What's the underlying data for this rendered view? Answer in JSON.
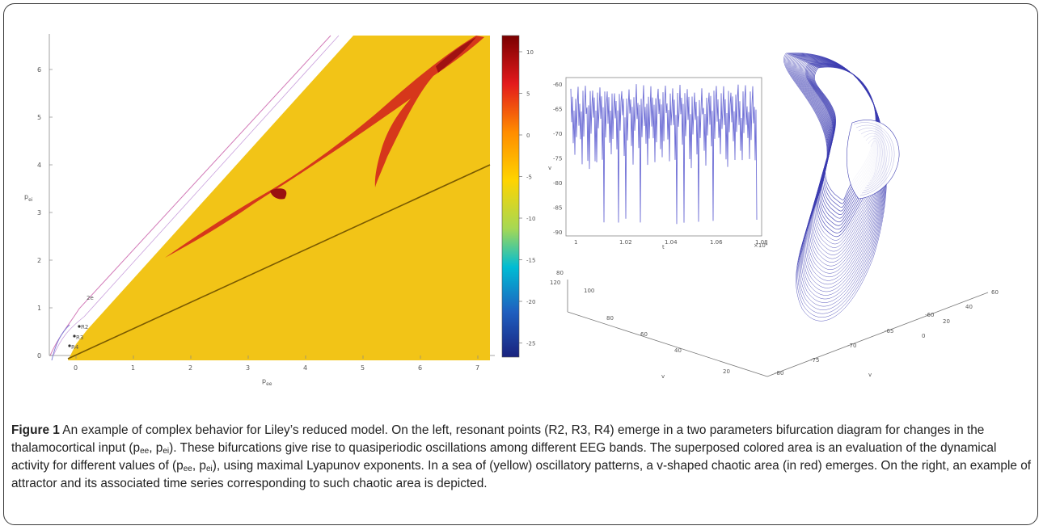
{
  "left_panel": {
    "y_ticks": [
      "0",
      "1",
      "2",
      "3",
      "4",
      "5",
      "6"
    ],
    "x_ticks": [
      "0",
      "1",
      "2",
      "3",
      "4",
      "5",
      "6",
      "7"
    ],
    "ylabel": "p",
    "ylabel_sub": "ei",
    "xlabel": "p",
    "xlabel_sub": "ee",
    "point_labels": [
      "2e",
      "R2",
      "R3",
      "R4"
    ]
  },
  "colorbar": {
    "ticks": [
      "10",
      "5",
      "0",
      "-5",
      "-10",
      "-15",
      "-20",
      "-25"
    ],
    "colors": [
      "#7a0000",
      "#e31a1c",
      "#ff8c00",
      "#ffd400",
      "#a6d854",
      "#00bcd4",
      "#1f5fbf",
      "#1a237e"
    ]
  },
  "time_series": {
    "y_ticks": [
      "-60",
      "-65",
      "-70",
      "-75",
      "-80",
      "-85",
      "-90"
    ],
    "x_ticks": [
      "1",
      "1.02",
      "1.04",
      "1.06",
      "1.08"
    ],
    "x_multiplier": "×10⁴",
    "ylabel": "v",
    "xlabel": "t",
    "line_color": "#6f6fd6"
  },
  "attractor": {
    "axis1_ticks": [
      "80",
      "100",
      "80",
      "60",
      "40",
      "20"
    ],
    "axis1_extra": "120",
    "axis2_ticks": [
      "-80",
      "-75",
      "-70",
      "-65",
      "-60"
    ],
    "axis3_ticks": [
      "60",
      "40",
      "20",
      "0"
    ],
    "line_color": "#3b3bb0"
  },
  "caption": {
    "label": "Figure 1",
    "parts": {
      "p1": " An example of complex behavior for Liley’s reduced model. On the left, resonant points (R2, R3, R4) emerge in a two parameters bifurcation diagram for changes in the thalamocortical input (p",
      "s1": "ee",
      "p2": ", p",
      "s2": "ei",
      "p3": "). These bifurcations give rise to quasiperiodic oscillations among different EEG bands. The superposed colored area is an evaluation of the dynamical activity for different values of (p",
      "s3": "ee",
      "p4": ", p",
      "s4": "ei",
      "p5": "), using maximal Lyapunov exponents. In a sea of (yellow) oscillatory patterns, a v-shaped chaotic area (in red) emerges. On the right, an example of attractor and its associated time series corresponding to such chaotic area is depicted."
    }
  }
}
